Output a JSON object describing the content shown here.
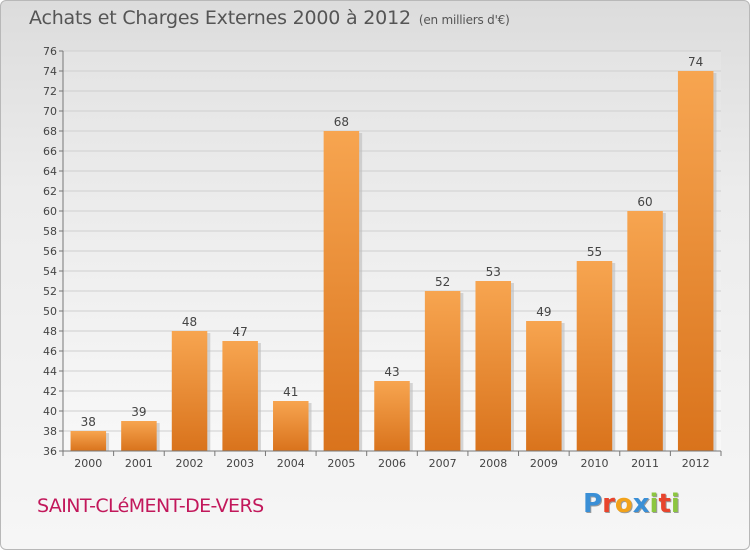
{
  "header": {
    "title": "Achats et Charges Externes 2000 à 2012",
    "subtitle": "(en milliers d'€)"
  },
  "footer": {
    "place": "SAINT-CLéMENT-DE-VERS",
    "logo_text": "Proxiti",
    "logo_colors": [
      "#3a8fd6",
      "#e8442c",
      "#f2a21a",
      "#3a8fd6",
      "#8cc63f",
      "#e8442c",
      "#8cc63f"
    ]
  },
  "chart_data": {
    "type": "bar",
    "title": "Achats et Charges Externes 2000 à 2012",
    "subtitle": "(en milliers d'€)",
    "categories": [
      "2000",
      "2001",
      "2002",
      "2003",
      "2004",
      "2005",
      "2006",
      "2007",
      "2008",
      "2009",
      "2010",
      "2011",
      "2012"
    ],
    "values": [
      38,
      39,
      48,
      47,
      41,
      68,
      43,
      52,
      53,
      49,
      55,
      60,
      74
    ],
    "xlabel": "",
    "ylabel": "",
    "ylim": [
      36,
      76
    ],
    "yticks": [
      36,
      38,
      40,
      42,
      44,
      46,
      48,
      50,
      52,
      54,
      56,
      58,
      60,
      62,
      64,
      66,
      68,
      70,
      72,
      74,
      76
    ],
    "grid": true,
    "bar_color_top": "#f7a550",
    "bar_color_bottom": "#d9731c"
  }
}
